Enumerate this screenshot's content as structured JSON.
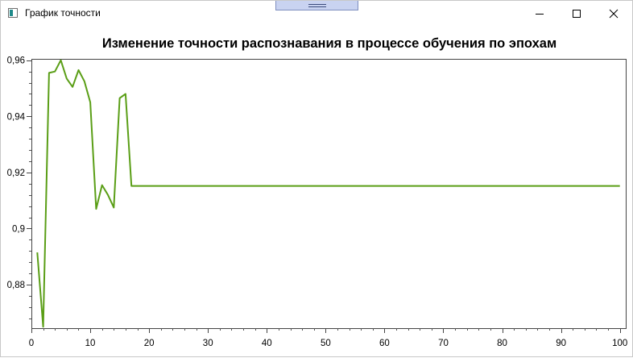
{
  "window": {
    "title": "График точности",
    "icon": "app-window-icon",
    "controls": [
      "minimize-icon",
      "maximize-icon",
      "close-icon"
    ]
  },
  "chart_data": {
    "type": "line",
    "title": "Изменение точности распознавания в процессе обучения по эпохам",
    "xlabel": "",
    "ylabel": "",
    "xlim": [
      0,
      101
    ],
    "ylim": [
      0.8645,
      0.9605
    ],
    "x_ticks": [
      0,
      10,
      20,
      30,
      40,
      50,
      60,
      70,
      80,
      90,
      100
    ],
    "x_tick_labels": [
      "0",
      "10",
      "20",
      "30",
      "40",
      "50",
      "60",
      "70",
      "80",
      "90",
      "100"
    ],
    "y_ticks": [
      0.88,
      0.9,
      0.92,
      0.94,
      0.96
    ],
    "y_tick_labels": [
      "0,88",
      "0,9",
      "0,92",
      "0,94",
      "0,96"
    ],
    "grid": false,
    "series": [
      {
        "color": "#5a9e16",
        "x": [
          1,
          2,
          3,
          4,
          5,
          6,
          7,
          8,
          9,
          10,
          11,
          12,
          13,
          14,
          15,
          16,
          17,
          100
        ],
        "y": [
          0.8915,
          0.865,
          0.9555,
          0.956,
          0.96,
          0.9535,
          0.9505,
          0.9565,
          0.9525,
          0.945,
          0.907,
          0.9155,
          0.912,
          0.9075,
          0.9465,
          0.948,
          0.9152,
          0.9152
        ]
      }
    ]
  }
}
